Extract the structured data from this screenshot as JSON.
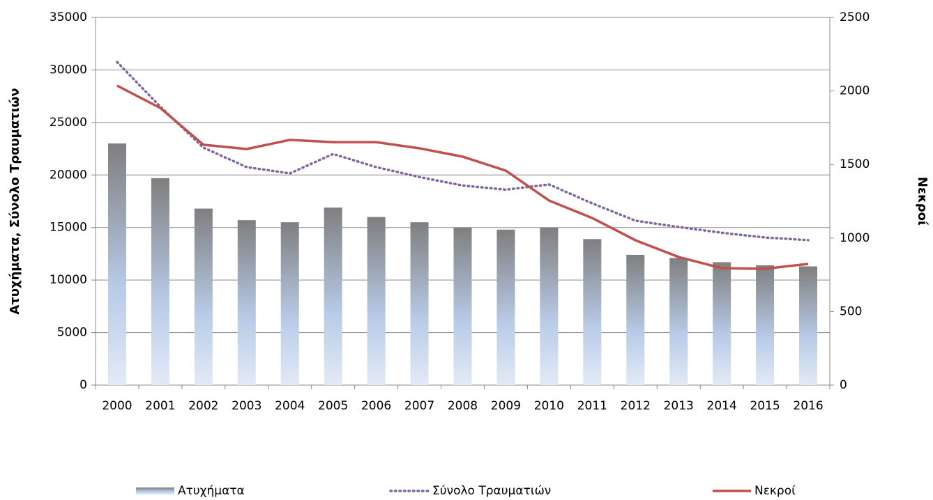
{
  "chart_data": {
    "type": "bar_line",
    "y_label": "Ατυχήματα, Σύνολο Τραυματιών",
    "y2_label": "Νεκροί",
    "categories": [
      "2000",
      "2001",
      "2002",
      "2003",
      "2004",
      "2005",
      "2006",
      "2007",
      "2008",
      "2009",
      "2010",
      "2011",
      "2012",
      "2013",
      "2014",
      "2015",
      "2016"
    ],
    "series": [
      {
        "name": "Ατυχήματα",
        "type": "bar",
        "color": "#7f7f7f",
        "values": [
          23000,
          19700,
          16800,
          15700,
          15500,
          16900,
          16000,
          15500,
          15000,
          14800,
          15000,
          13900,
          12400,
          12100,
          11700,
          11400,
          11300
        ]
      },
      {
        "name": "Σύνολο Τραυματιών",
        "type": "line",
        "style": "dotted",
        "color": "#8064a2",
        "values": [
          30750,
          26500,
          22600,
          20750,
          20150,
          22000,
          20750,
          19800,
          19000,
          18600,
          19100,
          17300,
          15650,
          15050,
          14500,
          14050,
          13800
        ]
      },
      {
        "name": "Νεκροί",
        "type": "line",
        "style": "solid",
        "axis": "y2",
        "color": "#c0504d",
        "values": [
          2036,
          1884,
          1634,
          1605,
          1667,
          1652,
          1652,
          1610,
          1553,
          1458,
          1255,
          1136,
          985,
          871,
          795,
          791,
          824
        ]
      }
    ],
    "ylim": [
      0,
      35000
    ],
    "yticks": [
      0,
      5000,
      10000,
      15000,
      20000,
      25000,
      30000,
      35000
    ],
    "y2lim": [
      0,
      2500
    ],
    "y2ticks": [
      0,
      500,
      1000,
      1500,
      2000,
      2500
    ],
    "grid": true,
    "legend": "bottom"
  }
}
